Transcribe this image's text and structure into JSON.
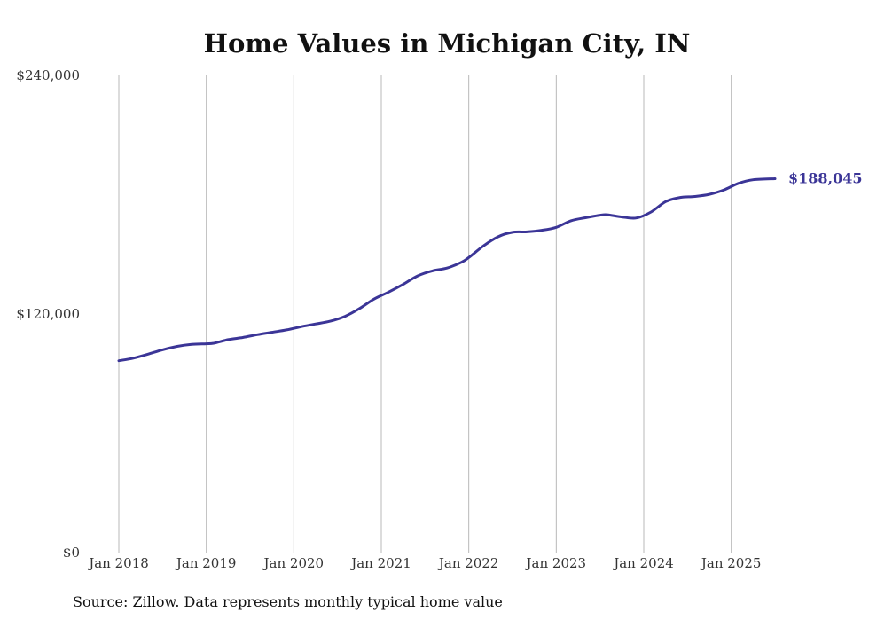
{
  "chart_data": {
    "type": "line",
    "title": "Home Values in Michigan City, IN",
    "xlabel": "",
    "ylabel": "",
    "ylim": [
      0,
      240000
    ],
    "y_tick_values": [
      0,
      120000,
      240000
    ],
    "y_tick_labels": [
      "$0",
      "$120,000",
      "$240,000"
    ],
    "x_range": [
      "2018-01",
      "2025-07"
    ],
    "x_tick_values": [
      "2018-01",
      "2019-01",
      "2020-01",
      "2021-01",
      "2022-01",
      "2023-01",
      "2024-01",
      "2025-01"
    ],
    "x_tick_labels": [
      "Jan 2018",
      "Jan 2019",
      "Jan 2020",
      "Jan 2021",
      "Jan 2022",
      "Jan 2023",
      "Jan 2024",
      "Jan 2025"
    ],
    "grid": "vertical",
    "line_color": "#3b3597",
    "end_label": "$188,045",
    "source": "Source: Zillow. Data represents monthly typical home value",
    "series": [
      {
        "points": [
          [
            "2018-01",
            96500
          ],
          [
            "2018-03",
            97800
          ],
          [
            "2018-05",
            99800
          ],
          [
            "2018-07",
            102000
          ],
          [
            "2018-09",
            103700
          ],
          [
            "2018-11",
            104700
          ],
          [
            "2019-01",
            105000
          ],
          [
            "2019-02",
            105300
          ],
          [
            "2019-04",
            107100
          ],
          [
            "2019-06",
            108200
          ],
          [
            "2019-08",
            109600
          ],
          [
            "2019-10",
            110800
          ],
          [
            "2019-12",
            112000
          ],
          [
            "2020-02",
            113600
          ],
          [
            "2020-04",
            115000
          ],
          [
            "2020-06",
            116400
          ],
          [
            "2020-08",
            118800
          ],
          [
            "2020-10",
            122700
          ],
          [
            "2020-12",
            127500
          ],
          [
            "2021-02",
            131000
          ],
          [
            "2021-04",
            134900
          ],
          [
            "2021-06",
            139200
          ],
          [
            "2021-08",
            141700
          ],
          [
            "2021-10",
            143100
          ],
          [
            "2021-12",
            146000
          ],
          [
            "2022-01",
            148400
          ],
          [
            "2022-03",
            154200
          ],
          [
            "2022-05",
            158800
          ],
          [
            "2022-07",
            161100
          ],
          [
            "2022-09",
            161300
          ],
          [
            "2022-11",
            162100
          ],
          [
            "2023-01",
            163600
          ],
          [
            "2023-03",
            166900
          ],
          [
            "2023-05",
            168400
          ],
          [
            "2023-07",
            169700
          ],
          [
            "2023-08",
            169900
          ],
          [
            "2023-10",
            168800
          ],
          [
            "2023-12",
            168300
          ],
          [
            "2024-02",
            171300
          ],
          [
            "2024-04",
            176500
          ],
          [
            "2024-06",
            178600
          ],
          [
            "2024-08",
            179100
          ],
          [
            "2024-10",
            180200
          ],
          [
            "2024-12",
            182400
          ],
          [
            "2025-02",
            185700
          ],
          [
            "2025-04",
            187500
          ],
          [
            "2025-07",
            188045
          ]
        ]
      }
    ]
  }
}
